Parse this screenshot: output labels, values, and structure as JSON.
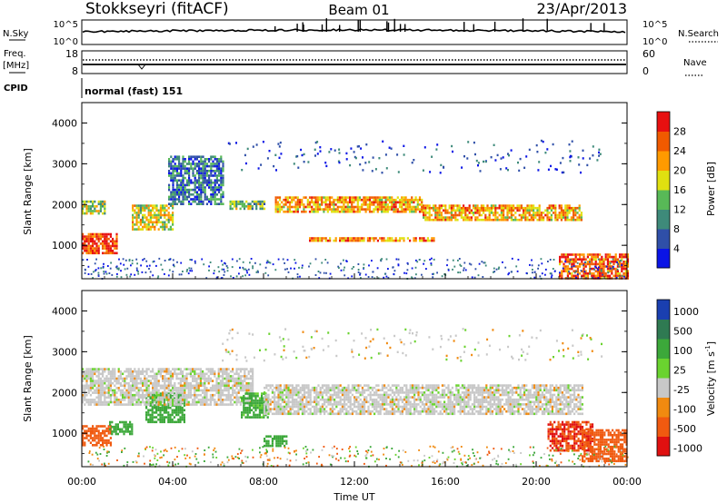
{
  "header": {
    "station": "Stokkseyri (fitACF)",
    "beam": "Beam 01",
    "date": "23/Apr/2013"
  },
  "noise_panel": {
    "left_label": "N.Sky",
    "right_label": "N.Search",
    "tick_top_left": "10^5",
    "tick_bottom_left": "10^0",
    "tick_top_right": "10^5",
    "tick_bottom_right": "10^0"
  },
  "freq_panel": {
    "left_label_1": "Freq.",
    "left_label_2": "[MHz]",
    "left_ticks": [
      "18",
      "8"
    ],
    "right_label": "Nave",
    "right_ticks": [
      "60",
      "0"
    ]
  },
  "cpid_panel": {
    "label": "CPID",
    "text": "normal (fast) 151"
  },
  "power_colorbar": {
    "label": "Power [dB]",
    "ticks": [
      "4",
      "8",
      "12",
      "16",
      "20",
      "24",
      "28"
    ],
    "colors": [
      "#0a14e6",
      "#2f4fa8",
      "#3e8a7a",
      "#58b957",
      "#e0e010",
      "#ff9a00",
      "#f05a00",
      "#e81010"
    ]
  },
  "velocity_colorbar": {
    "label_main": "Velocity  [m s",
    "label_sup": "-1",
    "label_end": "]",
    "ticks": [
      "1000",
      "500",
      "100",
      "25",
      "-25",
      "-100",
      "-500",
      "-1000"
    ],
    "colors": [
      "#1a3fb0",
      "#2f7a52",
      "#3ca83a",
      "#6ad32f",
      "#c8c8c8",
      "#f08a10",
      "#f05a10",
      "#e01010"
    ]
  },
  "axes": {
    "ylabel": "Slant Range [km]",
    "yticks": [
      "1000",
      "2000",
      "3000",
      "4000"
    ],
    "xlabel": "Time UT",
    "xticks": [
      "00:00",
      "04:00",
      "08:00",
      "12:00",
      "16:00",
      "20:00",
      "00:00"
    ]
  },
  "chart_data": [
    {
      "type": "heatmap",
      "title": "Power",
      "xlabel": "",
      "ylabel": "Slant Range [km]",
      "x_range_hours": [
        0,
        24
      ],
      "ylim": [
        180,
        4500
      ],
      "zlim": [
        0,
        31
      ],
      "colorbar_label": "Power [dB]",
      "regions": [
        {
          "t0": 0.0,
          "t1": 1.5,
          "r0": 800,
          "r1": 1300,
          "level": 28
        },
        {
          "t0": 0.0,
          "t1": 1.0,
          "r0": 1800,
          "r1": 2100,
          "level": 16
        },
        {
          "t0": 2.2,
          "t1": 4.0,
          "r0": 1400,
          "r1": 2000,
          "level": 18
        },
        {
          "t0": 3.8,
          "t1": 6.2,
          "r0": 2000,
          "r1": 3200,
          "level": 8
        },
        {
          "t0": 6.5,
          "t1": 8.0,
          "r0": 1900,
          "r1": 2100,
          "level": 14
        },
        {
          "t0": 8.5,
          "t1": 15.0,
          "r0": 1800,
          "r1": 2200,
          "level": 22
        },
        {
          "t0": 10.0,
          "t1": 15.5,
          "r0": 1100,
          "r1": 1200,
          "level": 24
        },
        {
          "t0": 15.0,
          "t1": 22.0,
          "r0": 1650,
          "r1": 2000,
          "level": 22
        },
        {
          "t0": 21.0,
          "t1": 24.0,
          "r0": 200,
          "r1": 800,
          "level": 26
        }
      ]
    },
    {
      "type": "heatmap",
      "title": "Velocity",
      "xlabel": "Time UT",
      "ylabel": "Slant Range [km]",
      "x_range_hours": [
        0,
        24
      ],
      "ylim": [
        180,
        4500
      ],
      "zlim": [
        -1000,
        1000
      ],
      "colorbar_label": "Velocity [m s-1]",
      "regions": [
        {
          "t0": 0.0,
          "t1": 1.3,
          "r0": 700,
          "r1": 1200,
          "level": -300
        },
        {
          "t0": 1.2,
          "t1": 2.2,
          "r0": 1000,
          "r1": 1300,
          "level": 150
        },
        {
          "t0": 2.8,
          "t1": 4.5,
          "r0": 1300,
          "r1": 2000,
          "level": 120
        },
        {
          "t0": 0.0,
          "t1": 7.5,
          "r0": 1700,
          "r1": 2600,
          "level": 0
        },
        {
          "t0": 7.0,
          "t1": 8.2,
          "r0": 1400,
          "r1": 2000,
          "level": 80
        },
        {
          "t0": 8.0,
          "t1": 9.0,
          "r0": 700,
          "r1": 950,
          "level": 150
        },
        {
          "t0": 8.0,
          "t1": 22.0,
          "r0": 1500,
          "r1": 2200,
          "level": 0
        },
        {
          "t0": 20.5,
          "t1": 22.5,
          "r0": 600,
          "r1": 1300,
          "level": -500
        },
        {
          "t0": 22.0,
          "t1": 24.0,
          "r0": 300,
          "r1": 1100,
          "level": -300
        }
      ]
    }
  ]
}
